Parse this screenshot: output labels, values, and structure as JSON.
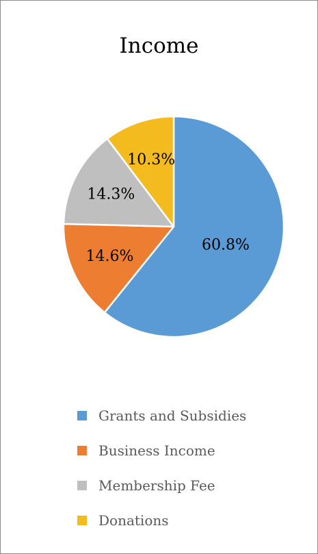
{
  "chart_data": {
    "type": "pie",
    "title": "Income",
    "categories": [
      "Grants and Subsidies",
      "Business Income",
      "Membership Fee",
      "Donations"
    ],
    "values": [
      60.8,
      14.6,
      14.3,
      10.3
    ],
    "data_labels": [
      "60.8%",
      "14.6%",
      "14.3%",
      "10.3%"
    ],
    "colors": [
      "#5b9bd5",
      "#ed7d31",
      "#bfbfbf",
      "#f4bb1f"
    ],
    "legend_position": "bottom"
  }
}
